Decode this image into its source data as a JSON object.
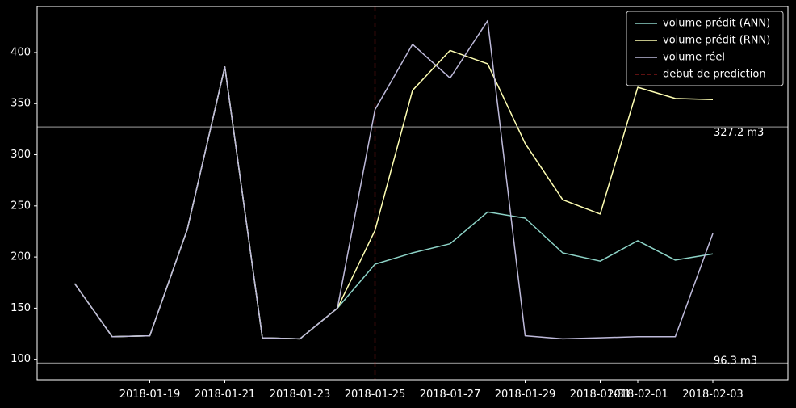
{
  "chart_data": {
    "type": "line",
    "title": "",
    "xlabel": "",
    "ylabel": "",
    "x": [
      "2018-01-17",
      "2018-01-18",
      "2018-01-19",
      "2018-01-20",
      "2018-01-21",
      "2018-01-22",
      "2018-01-23",
      "2018-01-24",
      "2018-01-25",
      "2018-01-26",
      "2018-01-27",
      "2018-01-28",
      "2018-01-29",
      "2018-01-30",
      "2018-01-31",
      "2018-02-01",
      "2018-02-02",
      "2018-02-03",
      "2018-02-04"
    ],
    "xticks": [
      "2018-01-19",
      "2018-01-21",
      "2018-01-23",
      "2018-01-25",
      "2018-01-27",
      "2018-01-29",
      "2018-01-31",
      "2018-02-01",
      "2018-02-03"
    ],
    "yticks": [
      100,
      150,
      200,
      250,
      300,
      350,
      400
    ],
    "xlim": [
      "2018-01-16",
      "2018-02-05"
    ],
    "ylim": [
      80,
      445
    ],
    "grid": false,
    "legend_position": "top-right",
    "series": [
      {
        "name": "volume prédit (ANN)",
        "color": "#8dd3c7",
        "values": [
          174,
          122,
          123,
          227,
          386,
          121,
          120,
          150,
          193,
          204,
          213,
          244,
          238,
          204,
          196,
          216,
          197,
          203,
          null
        ]
      },
      {
        "name": "volume prédit (RNN)",
        "color": "#ffffb3",
        "values": [
          174,
          122,
          123,
          227,
          386,
          121,
          120,
          150,
          226,
          363,
          402,
          389,
          311,
          256,
          242,
          366,
          355,
          354,
          null
        ]
      },
      {
        "name": "volume réel",
        "color": "#bebada",
        "values": [
          174,
          122,
          123,
          227,
          386,
          121,
          120,
          150,
          344,
          408,
          375,
          431,
          123,
          120,
          121,
          122,
          122,
          223,
          null
        ]
      }
    ],
    "vline": {
      "name": "debut de prediction",
      "x": "2018-01-25",
      "color": "#b22222"
    },
    "hlines": [
      {
        "value": 327.2,
        "label": "327.2 m3",
        "color": "#808080"
      },
      {
        "value": 96.3,
        "label": "96.3 m3",
        "color": "#808080"
      }
    ]
  }
}
